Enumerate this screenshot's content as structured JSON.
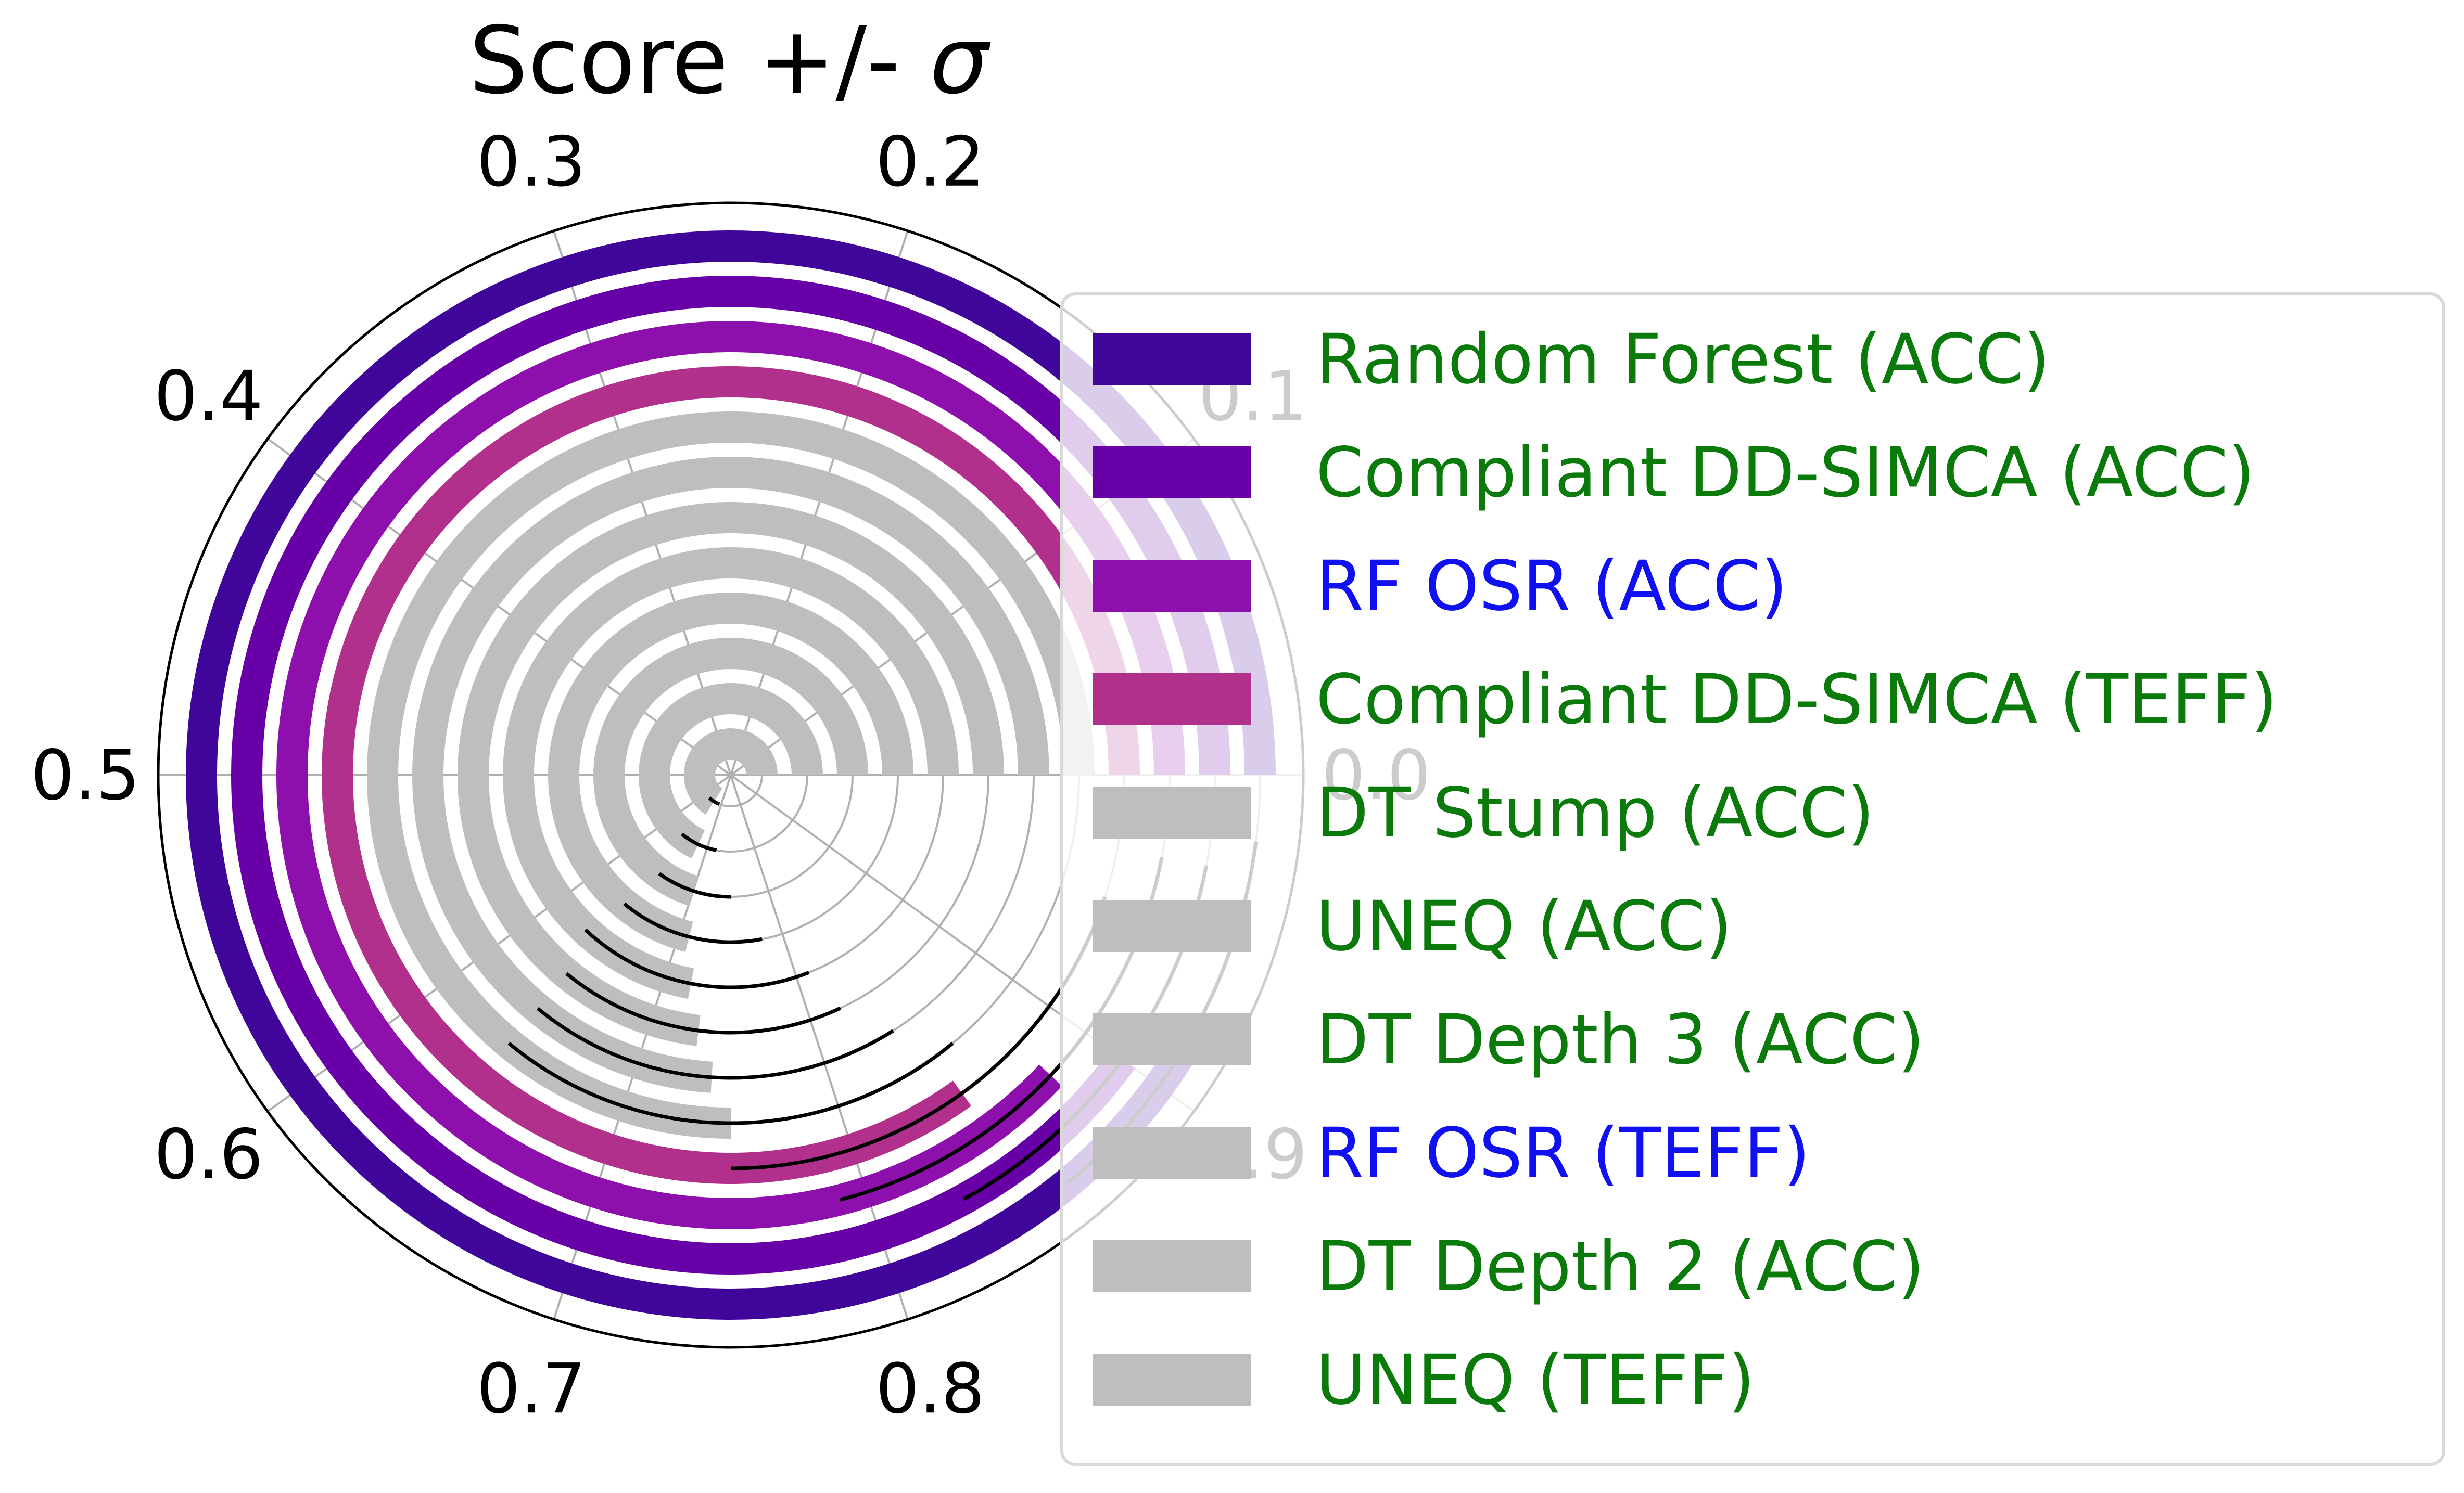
{
  "chart_data": {
    "type": "radial-bar",
    "title": "Score +/- σ",
    "title_base": "Score +/- ",
    "title_symbol": "σ",
    "angular_range": [
      0,
      1
    ],
    "angular_ticks": [
      "0.0",
      "0.1",
      "0.2",
      "0.3",
      "0.4",
      "0.5",
      "0.6",
      "0.7",
      "0.8",
      "0.9"
    ],
    "grid": true,
    "legend_position": "right",
    "series": [
      {
        "name": "Random Forest (ACC)",
        "value": 0.92,
        "std": 0.06,
        "color": "#40069a",
        "label_color": "#0a7a0a"
      },
      {
        "name": "Compliant DD-SIMCA (ACC)",
        "value": 0.9,
        "std": 0.07,
        "color": "#6800a8",
        "label_color": "#0a7a0a"
      },
      {
        "name": "RF OSR (ACC)",
        "value": 0.88,
        "std": 0.09,
        "color": "#8e10ac",
        "label_color": "#1010f0"
      },
      {
        "name": "Compliant DD-SIMCA (TEFF)",
        "value": 0.85,
        "std": 0.1,
        "color": "#b0308c",
        "label_color": "#0a7a0a"
      },
      {
        "name": "DT Stump (ACC)",
        "value": 0.75,
        "std": 0.11,
        "color": "#bebebe",
        "label_color": "#0a7a0a"
      },
      {
        "name": "UNEQ (ACC)",
        "value": 0.74,
        "std": 0.1,
        "color": "#bebebe",
        "label_color": "#0a7a0a"
      },
      {
        "name": "DT Depth 3 (ACC)",
        "value": 0.73,
        "std": 0.09,
        "color": "#bebebe",
        "label_color": "#0a7a0a"
      },
      {
        "name": "RF OSR (TEFF)",
        "value": 0.72,
        "std": 0.09,
        "color": "#bebebe",
        "label_color": "#1010f0"
      },
      {
        "name": "DT Depth 2 (ACC)",
        "value": 0.71,
        "std": 0.07,
        "color": "#bebebe",
        "label_color": "#0a7a0a"
      },
      {
        "name": "UNEQ (TEFF)",
        "value": 0.7,
        "std": 0.05,
        "color": "#bebebe",
        "label_color": "#0a7a0a"
      },
      {
        "name": "",
        "value": 0.68,
        "std": 0.04,
        "color": "#bebebe",
        "label_color": "#0a7a0a"
      },
      {
        "name": "",
        "value": 0.66,
        "std": 0.03,
        "color": "#bebebe",
        "label_color": "#0a7a0a"
      }
    ]
  }
}
